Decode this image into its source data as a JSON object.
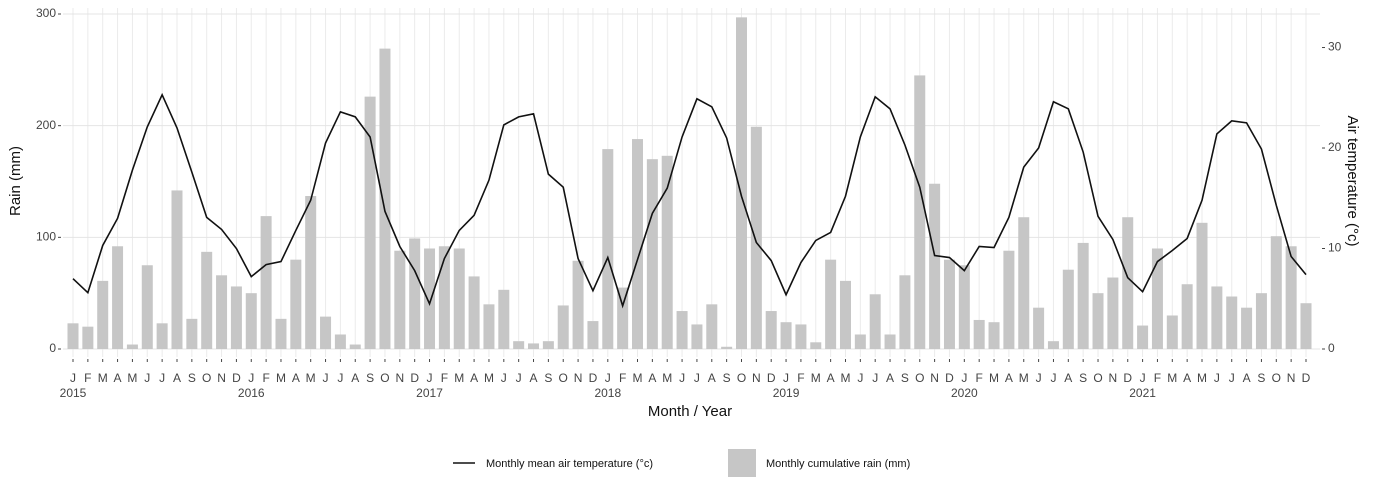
{
  "chart_data": {
    "type": "combo",
    "x_label": "Month / Year",
    "y_label": "Rain (mm)",
    "y2_label": "Air temperature (°c)",
    "categories": [
      "J",
      "F",
      "M",
      "A",
      "M",
      "J",
      "J",
      "A",
      "S",
      "O",
      "N",
      "D",
      "J",
      "F",
      "M",
      "A",
      "M",
      "J",
      "J",
      "A",
      "S",
      "O",
      "N",
      "D",
      "J",
      "F",
      "M",
      "A",
      "M",
      "J",
      "J",
      "A",
      "S",
      "O",
      "N",
      "D",
      "J",
      "F",
      "M",
      "A",
      "M",
      "J",
      "J",
      "A",
      "S",
      "O",
      "N",
      "D",
      "J",
      "F",
      "M",
      "A",
      "M",
      "J",
      "J",
      "A",
      "S",
      "O",
      "N",
      "D",
      "J",
      "F",
      "M",
      "A",
      "M",
      "J",
      "J",
      "A",
      "S",
      "O",
      "N",
      "D",
      "J",
      "F",
      "M",
      "A",
      "M",
      "J",
      "J",
      "A",
      "S",
      "O",
      "N",
      "D"
    ],
    "years": [
      "2015",
      "2016",
      "2017",
      "2018",
      "2019",
      "2020",
      "2021"
    ],
    "ylim": [
      0,
      300
    ],
    "yticks": [
      0,
      100,
      200,
      300
    ],
    "y2lim": [
      0,
      30.5
    ],
    "y2ticks": [
      0,
      10,
      20,
      30
    ],
    "grid": true,
    "series": [
      {
        "name": "Monthly cumulative rain (mm)",
        "type": "bar",
        "color": "#c6c6c6",
        "axis": "y",
        "values": [
          23,
          20,
          61,
          92,
          4,
          75,
          23,
          142,
          27,
          87,
          66,
          56,
          50,
          119,
          27,
          80,
          137,
          29,
          13,
          4,
          226,
          269,
          88,
          99,
          90,
          92,
          90,
          65,
          40,
          53,
          7,
          5,
          7,
          39,
          79,
          25,
          179,
          55,
          188,
          170,
          173,
          34,
          22,
          40,
          2,
          297,
          199,
          34,
          24,
          22,
          6,
          80,
          61,
          13,
          49,
          13,
          66,
          245,
          148,
          80,
          75,
          26,
          24,
          88,
          118,
          37,
          7,
          71,
          95,
          50,
          64,
          118,
          21,
          90,
          30,
          58,
          113,
          56,
          47,
          37,
          50,
          101,
          92,
          41
        ]
      },
      {
        "name": "Monthly mean air temperature (°c)",
        "type": "line",
        "color": "#111111",
        "axis": "y2",
        "values": [
          7.0,
          5.6,
          10.3,
          13.0,
          17.8,
          22.1,
          25.3,
          22.0,
          17.6,
          13.1,
          11.9,
          10.0,
          7.2,
          8.4,
          8.7,
          11.8,
          14.8,
          20.5,
          23.6,
          23.1,
          21.1,
          13.7,
          10.2,
          7.8,
          4.5,
          9.0,
          11.8,
          13.3,
          16.8,
          22.3,
          23.1,
          23.4,
          17.4,
          16.1,
          9.0,
          5.8,
          9.1,
          4.3,
          8.9,
          13.5,
          16.0,
          21.1,
          24.9,
          24.1,
          21.0,
          15.2,
          10.6,
          8.8,
          5.4,
          8.6,
          10.8,
          11.6,
          15.2,
          21.1,
          25.1,
          23.9,
          20.3,
          16.1,
          9.3,
          9.1,
          7.8,
          10.2,
          10.1,
          13.1,
          18.1,
          20.0,
          24.6,
          23.9,
          19.6,
          13.2,
          10.9,
          7.1,
          5.7,
          8.7,
          9.8,
          11.0,
          14.8,
          21.4,
          22.7,
          22.5,
          19.9,
          14.3,
          9.2,
          7.4
        ]
      }
    ]
  }
}
